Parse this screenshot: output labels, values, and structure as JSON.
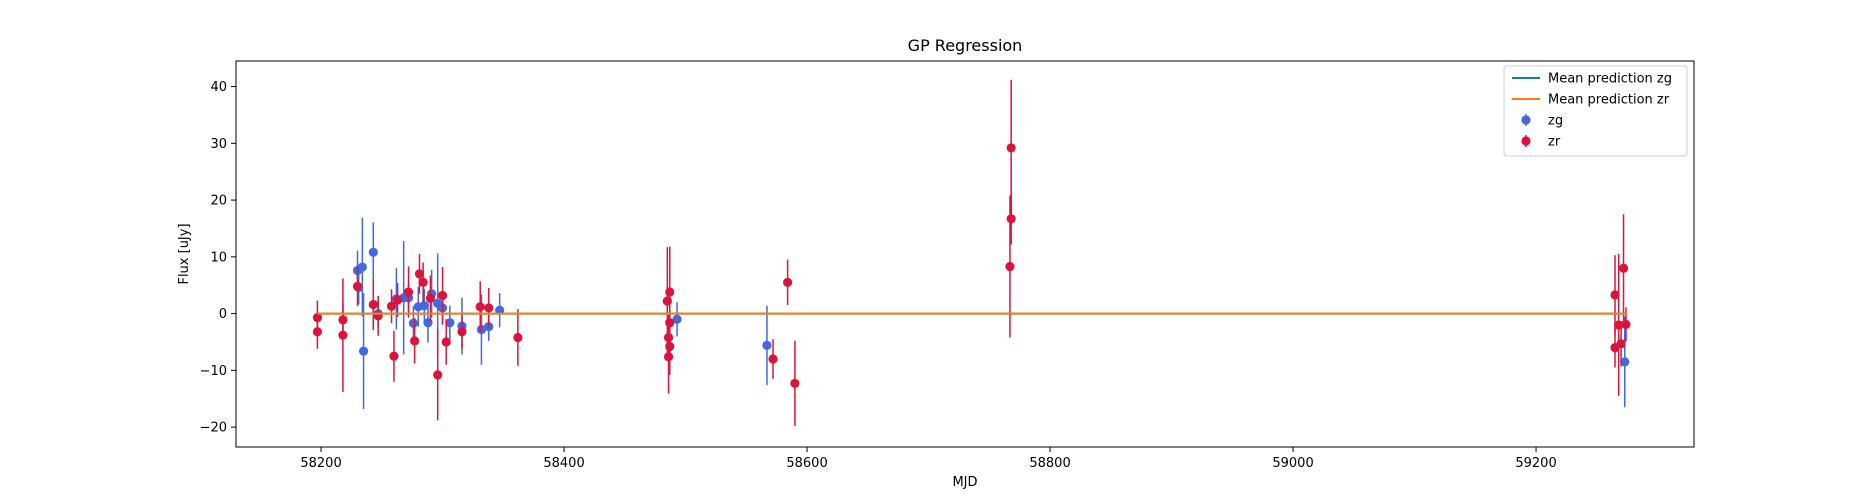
{
  "chart_data": {
    "type": "scatter",
    "title": "GP Regression",
    "xlabel": "MJD",
    "ylabel": "Flux [uJy]",
    "xlim": [
      58130,
      59330
    ],
    "ylim": [
      -23.5,
      44.5
    ],
    "xticks": [
      58200,
      58400,
      58600,
      58800,
      59000,
      59200
    ],
    "yticks": [
      -20,
      -10,
      0,
      10,
      20,
      30,
      40
    ],
    "grid": false,
    "legend_position": "top-right",
    "lines": [
      {
        "name": "Mean prediction zg",
        "color": "#1f77b4",
        "x": [
          58197,
          59275
        ],
        "y": [
          0,
          0
        ]
      },
      {
        "name": "Mean prediction zr",
        "color": "#ff7f0e",
        "x": [
          58197,
          59275
        ],
        "y": [
          0,
          0
        ]
      }
    ],
    "series": [
      {
        "name": "zg",
        "color": "#4169e1",
        "points": [
          {
            "x": 58230,
            "y": 7.6,
            "err": 3.5
          },
          {
            "x": 58231,
            "y": 4.6,
            "err": 3.0
          },
          {
            "x": 58234,
            "y": 8.2,
            "err": 8.7
          },
          {
            "x": 58235,
            "y": -6.6,
            "err": 10.2
          },
          {
            "x": 58243,
            "y": 10.8,
            "err": 5.3
          },
          {
            "x": 58247,
            "y": 0.0,
            "err": 2.5
          },
          {
            "x": 58262,
            "y": 2.6,
            "err": 5.4
          },
          {
            "x": 58268,
            "y": 2.8,
            "err": 10.0
          },
          {
            "x": 58272,
            "y": 2.8,
            "err": 2.5
          },
          {
            "x": 58276,
            "y": -1.7,
            "err": 3.0
          },
          {
            "x": 58280,
            "y": 1.2,
            "err": 3.5
          },
          {
            "x": 58285,
            "y": 1.4,
            "err": 3.0
          },
          {
            "x": 58288,
            "y": -1.6,
            "err": 3.5
          },
          {
            "x": 58291,
            "y": 3.5,
            "err": 4.2
          },
          {
            "x": 58296,
            "y": 1.8,
            "err": 8.8
          },
          {
            "x": 58300,
            "y": 1.0,
            "err": 3.0
          },
          {
            "x": 58306,
            "y": -1.6,
            "err": 3.0
          },
          {
            "x": 58316,
            "y": -2.2,
            "err": 5.0
          },
          {
            "x": 58332,
            "y": -2.8,
            "err": 6.2
          },
          {
            "x": 58338,
            "y": -2.3,
            "err": 2.5
          },
          {
            "x": 58347,
            "y": 0.6,
            "err": 3.0
          },
          {
            "x": 58493,
            "y": -1.0,
            "err": 3.0
          },
          {
            "x": 58567,
            "y": -5.6,
            "err": 7.0
          },
          {
            "x": 59273,
            "y": -8.5,
            "err": 8.0
          }
        ]
      },
      {
        "name": "zr",
        "color": "#dc143c",
        "points": [
          {
            "x": 58197,
            "y": -0.7,
            "err": 3.0
          },
          {
            "x": 58197,
            "y": -3.2,
            "err": 3.0
          },
          {
            "x": 58218,
            "y": -1.1,
            "err": 3.0
          },
          {
            "x": 58218,
            "y": -3.8,
            "err": 10.0
          },
          {
            "x": 58230,
            "y": 4.8,
            "err": 3.5
          },
          {
            "x": 58243,
            "y": 1.6,
            "err": 4.5
          },
          {
            "x": 58247,
            "y": -0.4,
            "err": 3.5
          },
          {
            "x": 58258,
            "y": 1.3,
            "err": 3.0
          },
          {
            "x": 58260,
            "y": -7.5,
            "err": 4.5
          },
          {
            "x": 58263,
            "y": 2.4,
            "err": 3.0
          },
          {
            "x": 58272,
            "y": 3.8,
            "err": 4.5
          },
          {
            "x": 58277,
            "y": -4.8,
            "err": 4.0
          },
          {
            "x": 58281,
            "y": 7.0,
            "err": 3.5
          },
          {
            "x": 58284,
            "y": 5.5,
            "err": 3.5
          },
          {
            "x": 58290,
            "y": 2.7,
            "err": 4.0
          },
          {
            "x": 58296,
            "y": -10.8,
            "err": 8.0
          },
          {
            "x": 58300,
            "y": 3.2,
            "err": 5.0
          },
          {
            "x": 58303,
            "y": -5.0,
            "err": 4.0
          },
          {
            "x": 58316,
            "y": -3.2,
            "err": 3.0
          },
          {
            "x": 58331,
            "y": 1.2,
            "err": 4.5
          },
          {
            "x": 58338,
            "y": 1.0,
            "err": 3.5
          },
          {
            "x": 58362,
            "y": -4.2,
            "err": 5.0
          },
          {
            "x": 58485,
            "y": 2.2,
            "err": 9.5
          },
          {
            "x": 58486,
            "y": -4.2,
            "err": 4.0
          },
          {
            "x": 58486,
            "y": -7.6,
            "err": 6.5
          },
          {
            "x": 58487,
            "y": -5.8,
            "err": 5.0
          },
          {
            "x": 58487,
            "y": -1.6,
            "err": 4.0
          },
          {
            "x": 58487,
            "y": 3.8,
            "err": 8.0
          },
          {
            "x": 58572,
            "y": -8.0,
            "err": 3.5
          },
          {
            "x": 58584,
            "y": 5.5,
            "err": 4.0
          },
          {
            "x": 58590,
            "y": -12.3,
            "err": 7.5
          },
          {
            "x": 58767,
            "y": 8.3,
            "err": 12.5
          },
          {
            "x": 58768,
            "y": 16.7,
            "err": 4.5
          },
          {
            "x": 58768,
            "y": 29.2,
            "err": 12.0
          },
          {
            "x": 59265,
            "y": 3.3,
            "err": 7.0
          },
          {
            "x": 59265,
            "y": -6.0,
            "err": 3.5
          },
          {
            "x": 59268,
            "y": -2.0,
            "err": 12.5
          },
          {
            "x": 59270,
            "y": -5.3,
            "err": 4.0
          },
          {
            "x": 59272,
            "y": 8.0,
            "err": 9.5
          },
          {
            "x": 59274,
            "y": -1.9,
            "err": 3.0
          }
        ]
      }
    ]
  }
}
